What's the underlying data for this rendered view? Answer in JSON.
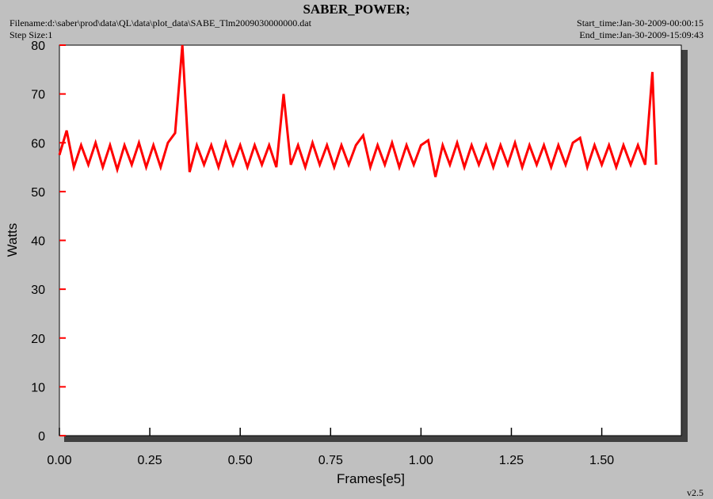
{
  "chart_data": {
    "type": "line",
    "title": "SABER_POWER;",
    "filename": "Filename:d:\\saber\\prod\\data\\QL\\data\\plot_data\\SABE_Tlm2009030000000.dat",
    "step_size": "Step Size:1",
    "start_time": "Start_time:Jan-30-2009-00:00:15",
    "end_time": "End_time:Jan-30-2009-15:09:43",
    "version": "v2.5",
    "x_label": "Frames[e5]",
    "y_label": "Watts",
    "xlim": [
      0,
      1.72
    ],
    "ylim": [
      0,
      80
    ],
    "xticks": [
      {
        "value": 0,
        "label": "0.00"
      },
      {
        "value": 0.25,
        "label": "0.25"
      },
      {
        "value": 0.5,
        "label": "0.50"
      },
      {
        "value": 0.75,
        "label": "0.75"
      },
      {
        "value": 1,
        "label": "1.00"
      },
      {
        "value": 1.25,
        "label": "1.25"
      },
      {
        "value": 1.5,
        "label": "1.50"
      }
    ],
    "yticks": [
      0,
      10,
      20,
      30,
      40,
      50,
      60,
      70,
      80
    ],
    "series": [
      {
        "color": "#ff0000",
        "x": [
          0,
          0.02,
          0.04,
          0.06,
          0.08,
          0.1,
          0.12,
          0.14,
          0.16,
          0.18,
          0.2,
          0.22,
          0.24,
          0.26,
          0.28,
          0.3,
          0.32,
          0.34,
          0.36,
          0.38,
          0.4,
          0.42,
          0.44,
          0.46,
          0.48,
          0.5,
          0.52,
          0.54,
          0.56,
          0.58,
          0.6,
          0.62,
          0.64,
          0.66,
          0.68,
          0.7,
          0.72,
          0.74,
          0.76,
          0.78,
          0.8,
          0.82,
          0.84,
          0.86,
          0.88,
          0.9,
          0.92,
          0.94,
          0.96,
          0.98,
          1.0,
          1.02,
          1.04,
          1.06,
          1.08,
          1.1,
          1.12,
          1.14,
          1.16,
          1.18,
          1.2,
          1.22,
          1.24,
          1.26,
          1.28,
          1.3,
          1.32,
          1.34,
          1.36,
          1.38,
          1.4,
          1.42,
          1.44,
          1.46,
          1.48,
          1.5,
          1.52,
          1.54,
          1.56,
          1.58,
          1.6,
          1.62,
          1.64,
          1.65
        ],
        "values": [
          57.5,
          62.5,
          55,
          59.5,
          55.5,
          60,
          55,
          59.5,
          54.5,
          59.5,
          55.5,
          60,
          55,
          59.5,
          55,
          60,
          62,
          80,
          54,
          59.5,
          55.5,
          59.5,
          55,
          60,
          55.5,
          59.5,
          55,
          59.5,
          55.5,
          59.5,
          55,
          70,
          55.5,
          59.5,
          55,
          60,
          55.5,
          59.5,
          55,
          59.5,
          55.5,
          59.5,
          61.5,
          55,
          59.5,
          55.5,
          60,
          55,
          59.5,
          55.5,
          59.5,
          60.5,
          53,
          59.5,
          55.5,
          60,
          55,
          59.5,
          55.5,
          59.5,
          55,
          59.5,
          55.5,
          60,
          55,
          59.5,
          55.5,
          59.5,
          55,
          59.5,
          55.5,
          60,
          61,
          55,
          59.5,
          55.5,
          59.5,
          55,
          59.5,
          55.5,
          59.5,
          55.5,
          74.5,
          55.5
        ]
      }
    ]
  }
}
